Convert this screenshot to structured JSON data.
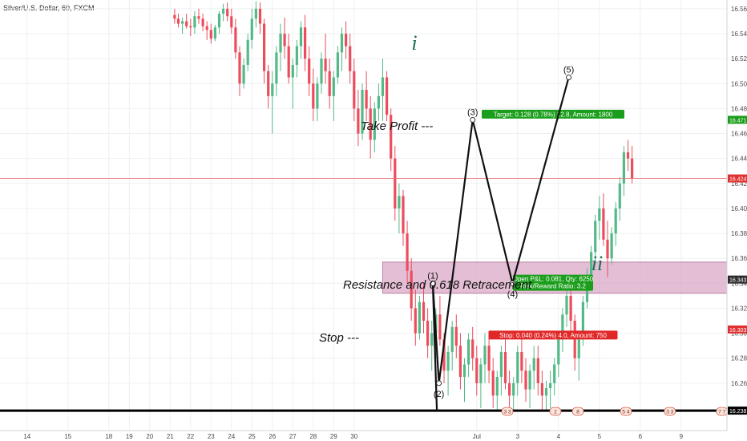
{
  "symbol": "Silver/U.S. Dollar, 60, FXCM",
  "chart_data": {
    "type": "line",
    "x_tick_labels": [
      "14",
      "15",
      "18",
      "19",
      "20",
      "21",
      "22",
      "23",
      "24",
      "25",
      "26",
      "27",
      "28",
      "29",
      "30",
      "Jul",
      "3",
      "4",
      "5",
      "6",
      "9"
    ],
    "y_ticks": [
      16.56,
      16.54,
      16.52,
      16.5,
      16.48,
      16.46,
      16.44,
      16.42,
      16.4,
      16.38,
      16.36,
      16.34,
      16.32,
      16.3,
      16.28,
      16.26
    ],
    "y_tick_labels": [
      "16.560",
      "16.540",
      "16.520",
      "16.500",
      "16.480",
      "16.460",
      "16.440",
      "16.420",
      "16.400",
      "16.380",
      "16.360",
      "16.340",
      "16.320",
      "16.300",
      "16.280",
      "16.260"
    ],
    "ylim": [
      16.222,
      16.567
    ],
    "price_tags": [
      {
        "label": "16.471",
        "value": 16.471,
        "color": "#1b9e1b"
      },
      {
        "label": "16.424",
        "value": 16.424,
        "color": "#e03030"
      },
      {
        "label": "16.343",
        "value": 16.343,
        "color": "#2d2d2d"
      },
      {
        "label": "16.303",
        "value": 16.303,
        "color": "#e03030"
      },
      {
        "label": "16.238",
        "value": 16.238,
        "color": "#000000"
      }
    ],
    "current_price": 16.424,
    "support_level": 16.238,
    "resistance_zone": {
      "from_day": 19.4,
      "to_day": 36.3,
      "low": 16.332,
      "high": 16.357,
      "label": "Resistance and 0.618 Retracement"
    },
    "wave_points": [
      {
        "label": "",
        "day": 22.05,
        "value": 16.238
      },
      {
        "label": "(1)",
        "day": 21.85,
        "value": 16.34
      },
      {
        "label": "(2)",
        "day": 22.15,
        "value": 16.26
      },
      {
        "label": "(3)",
        "day": 23.8,
        "value": 16.471
      },
      {
        "label": "(4)",
        "day": 25.75,
        "value": 16.34
      },
      {
        "label": "(5)",
        "day": 28.5,
        "value": 16.505
      }
    ],
    "degree_labels": {
      "primary": "i",
      "secondary": "ii"
    },
    "annotations": {
      "take_profit": "Take Profit ---",
      "stop": "Stop ---"
    },
    "position": {
      "target_label": "Target: 0.128 (0.78%) 12.8, Amount: 1800",
      "open_label": "Open P&L: 0.081, Qty: 6250",
      "ratio_label": "Risk/Reward Ratio: 3.2",
      "stop_label": "Stop: 0.040 (0.24%) 4.0, Amount: 750",
      "entry": 16.343,
      "target": 16.471,
      "stop": 16.303,
      "from_day": 36.9,
      "to_day": 39.7
    },
    "event_markers": [
      {
        "label": "3 3",
        "day": 25.5
      },
      {
        "label": "2",
        "day": 27.85
      },
      {
        "label": "8",
        "day": 28.95
      },
      {
        "label": "5 4",
        "day": 31.3
      },
      {
        "label": "3 3",
        "day": 33.45
      },
      {
        "label": "7 7",
        "day": 36.0
      }
    ],
    "candles": [
      [
        9.22,
        16.555,
        16.56,
        16.548,
        16.552
      ],
      [
        9.4,
        16.552,
        16.556,
        16.545,
        16.548
      ],
      [
        9.6,
        16.548,
        16.553,
        16.54,
        16.55
      ],
      [
        9.8,
        16.55,
        16.556,
        16.544,
        16.546
      ],
      [
        10.0,
        16.546,
        16.552,
        16.538,
        16.545
      ],
      [
        10.2,
        16.545,
        16.558,
        16.54,
        16.554
      ],
      [
        10.4,
        16.554,
        16.56,
        16.548,
        16.552
      ],
      [
        10.6,
        16.552,
        16.556,
        16.542,
        16.546
      ],
      [
        10.8,
        16.546,
        16.55,
        16.535,
        16.543
      ],
      [
        11.0,
        16.543,
        16.548,
        16.532,
        16.536
      ],
      [
        11.2,
        16.536,
        16.547,
        16.534,
        16.545
      ],
      [
        11.4,
        16.545,
        16.558,
        16.54,
        16.556
      ],
      [
        11.6,
        16.556,
        16.564,
        16.55,
        16.56
      ],
      [
        11.8,
        16.56,
        16.565,
        16.55,
        16.554
      ],
      [
        12.0,
        16.554,
        16.56,
        16.54,
        16.545
      ],
      [
        12.2,
        16.545,
        16.552,
        16.52,
        16.525
      ],
      [
        12.4,
        16.525,
        16.53,
        16.49,
        16.5
      ],
      [
        12.6,
        16.5,
        16.52,
        16.496,
        16.515
      ],
      [
        12.8,
        16.515,
        16.54,
        16.51,
        16.535
      ],
      [
        13.0,
        16.535,
        16.56,
        16.528,
        16.552
      ],
      [
        13.2,
        16.552,
        16.566,
        16.545,
        16.56
      ],
      [
        13.4,
        16.56,
        16.565,
        16.54,
        16.548
      ],
      [
        13.6,
        16.548,
        16.552,
        16.5,
        16.51
      ],
      [
        13.8,
        16.51,
        16.515,
        16.48,
        16.49
      ],
      [
        14.0,
        16.49,
        16.51,
        16.46,
        16.5
      ],
      [
        14.2,
        16.5,
        16.53,
        16.49,
        16.525
      ],
      [
        14.4,
        16.525,
        16.548,
        16.51,
        16.54
      ],
      [
        14.6,
        16.54,
        16.553,
        16.52,
        16.53
      ],
      [
        14.8,
        16.53,
        16.54,
        16.5,
        16.505
      ],
      [
        15.0,
        16.505,
        16.52,
        16.48,
        16.515
      ],
      [
        15.2,
        16.515,
        16.535,
        16.505,
        16.53
      ],
      [
        15.4,
        16.53,
        16.55,
        16.52,
        16.545
      ],
      [
        15.6,
        16.545,
        16.555,
        16.51,
        16.52
      ],
      [
        15.8,
        16.52,
        16.53,
        16.49,
        16.5
      ],
      [
        16.0,
        16.5,
        16.512,
        16.47,
        16.48
      ],
      [
        16.2,
        16.48,
        16.505,
        16.47,
        16.5
      ],
      [
        16.4,
        16.5,
        16.525,
        16.492,
        16.52
      ],
      [
        16.6,
        16.52,
        16.54,
        16.5,
        16.51
      ],
      [
        16.8,
        16.51,
        16.52,
        16.48,
        16.49
      ],
      [
        17.0,
        16.49,
        16.51,
        16.47,
        16.505
      ],
      [
        17.2,
        16.505,
        16.53,
        16.5,
        16.525
      ],
      [
        17.4,
        16.525,
        16.545,
        16.51,
        16.54
      ],
      [
        17.6,
        16.54,
        16.55,
        16.52,
        16.53
      ],
      [
        17.8,
        16.53,
        16.54,
        16.5,
        16.51
      ],
      [
        18.0,
        16.51,
        16.52,
        16.47,
        16.48
      ],
      [
        18.2,
        16.48,
        16.495,
        16.45,
        16.46
      ],
      [
        18.4,
        16.46,
        16.5,
        16.455,
        16.495
      ],
      [
        18.6,
        16.495,
        16.51,
        16.47,
        16.48
      ],
      [
        18.8,
        16.48,
        16.49,
        16.44,
        16.455
      ],
      [
        19.0,
        16.455,
        16.485,
        16.445,
        16.48
      ],
      [
        19.2,
        16.48,
        16.5,
        16.47,
        16.49
      ],
      [
        19.4,
        16.49,
        16.52,
        16.47,
        16.505
      ],
      [
        19.6,
        16.505,
        16.51,
        16.47,
        16.475
      ],
      [
        19.8,
        16.475,
        16.48,
        16.43,
        16.44
      ],
      [
        20.0,
        16.44,
        16.45,
        16.39,
        16.4
      ],
      [
        20.2,
        16.4,
        16.42,
        16.38,
        16.41
      ],
      [
        20.4,
        16.41,
        16.415,
        16.37,
        16.38
      ],
      [
        20.6,
        16.38,
        16.39,
        16.34,
        16.35
      ],
      [
        20.8,
        16.35,
        16.36,
        16.31,
        16.32
      ],
      [
        21.0,
        16.32,
        16.335,
        16.29,
        16.3
      ],
      [
        21.2,
        16.3,
        16.33,
        16.295,
        16.325
      ],
      [
        21.4,
        16.325,
        16.34,
        16.3,
        16.31
      ],
      [
        21.6,
        16.31,
        16.32,
        16.28,
        16.29
      ],
      [
        21.8,
        16.29,
        16.31,
        16.27,
        16.3
      ],
      [
        22.0,
        16.3,
        16.32,
        16.28,
        16.315
      ],
      [
        22.2,
        16.315,
        16.33,
        16.29,
        16.295
      ],
      [
        22.4,
        16.295,
        16.3,
        16.26,
        16.27
      ],
      [
        22.6,
        16.27,
        16.29,
        16.25,
        16.285
      ],
      [
        22.8,
        16.285,
        16.31,
        16.27,
        16.305
      ],
      [
        23.0,
        16.305,
        16.315,
        16.28,
        16.29
      ],
      [
        23.2,
        16.29,
        16.3,
        16.255,
        16.265
      ],
      [
        23.4,
        16.265,
        16.28,
        16.245,
        16.275
      ],
      [
        23.6,
        16.275,
        16.3,
        16.265,
        16.295
      ],
      [
        23.8,
        16.295,
        16.305,
        16.27,
        16.28
      ],
      [
        24.0,
        16.28,
        16.29,
        16.25,
        16.26
      ],
      [
        24.2,
        16.26,
        16.28,
        16.24,
        16.275
      ],
      [
        24.4,
        16.275,
        16.3,
        16.26,
        16.29
      ],
      [
        24.6,
        16.29,
        16.3,
        16.26,
        16.27
      ],
      [
        24.8,
        16.27,
        16.28,
        16.24,
        16.25
      ],
      [
        25.0,
        16.25,
        16.27,
        16.238,
        16.265
      ],
      [
        25.2,
        16.265,
        16.29,
        16.25,
        16.285
      ],
      [
        25.4,
        16.285,
        16.295,
        16.255,
        16.26
      ],
      [
        25.6,
        16.26,
        16.27,
        16.238,
        16.25
      ],
      [
        25.8,
        16.25,
        16.265,
        16.238,
        16.26
      ],
      [
        26.0,
        16.26,
        16.29,
        16.25,
        16.285
      ],
      [
        26.2,
        16.285,
        16.3,
        16.26,
        16.27
      ],
      [
        26.4,
        16.27,
        16.28,
        16.245,
        16.255
      ],
      [
        26.6,
        16.255,
        16.275,
        16.24,
        16.27
      ],
      [
        26.8,
        16.27,
        16.29,
        16.255,
        16.28
      ],
      [
        27.0,
        16.28,
        16.29,
        16.25,
        16.26
      ],
      [
        27.2,
        16.26,
        16.27,
        16.238,
        16.25
      ],
      [
        27.4,
        16.25,
        16.262,
        16.238,
        16.256
      ],
      [
        27.6,
        16.256,
        16.27,
        16.24,
        16.26
      ],
      [
        27.8,
        16.26,
        16.28,
        16.25,
        16.275
      ],
      [
        28.0,
        16.275,
        16.3,
        16.265,
        16.295
      ],
      [
        28.2,
        16.295,
        16.32,
        16.285,
        16.315
      ],
      [
        28.4,
        16.315,
        16.342,
        16.305,
        16.33
      ],
      [
        28.6,
        16.33,
        16.335,
        16.3,
        16.31
      ],
      [
        28.8,
        16.31,
        16.315,
        16.27,
        16.28
      ],
      [
        29.0,
        16.28,
        16.3,
        16.262,
        16.295
      ],
      [
        29.2,
        16.295,
        16.33,
        16.29,
        16.325
      ],
      [
        29.4,
        16.325,
        16.352,
        16.32,
        16.345
      ],
      [
        29.6,
        16.345,
        16.37,
        16.34,
        16.365
      ],
      [
        29.8,
        16.365,
        16.395,
        16.355,
        16.39
      ],
      [
        30.0,
        16.39,
        16.41,
        16.375,
        16.4
      ],
      [
        30.2,
        16.4,
        16.412,
        16.37,
        16.375
      ],
      [
        30.4,
        16.375,
        16.39,
        16.345,
        16.36
      ],
      [
        30.6,
        16.36,
        16.385,
        16.355,
        16.38
      ],
      [
        30.8,
        16.38,
        16.405,
        16.37,
        16.4
      ],
      [
        31.0,
        16.4,
        16.425,
        16.39,
        16.42
      ],
      [
        31.2,
        16.42,
        16.45,
        16.41,
        16.445
      ],
      [
        31.4,
        16.445,
        16.455,
        16.43,
        16.44
      ],
      [
        31.6,
        16.44,
        16.45,
        16.42,
        16.424
      ]
    ]
  }
}
